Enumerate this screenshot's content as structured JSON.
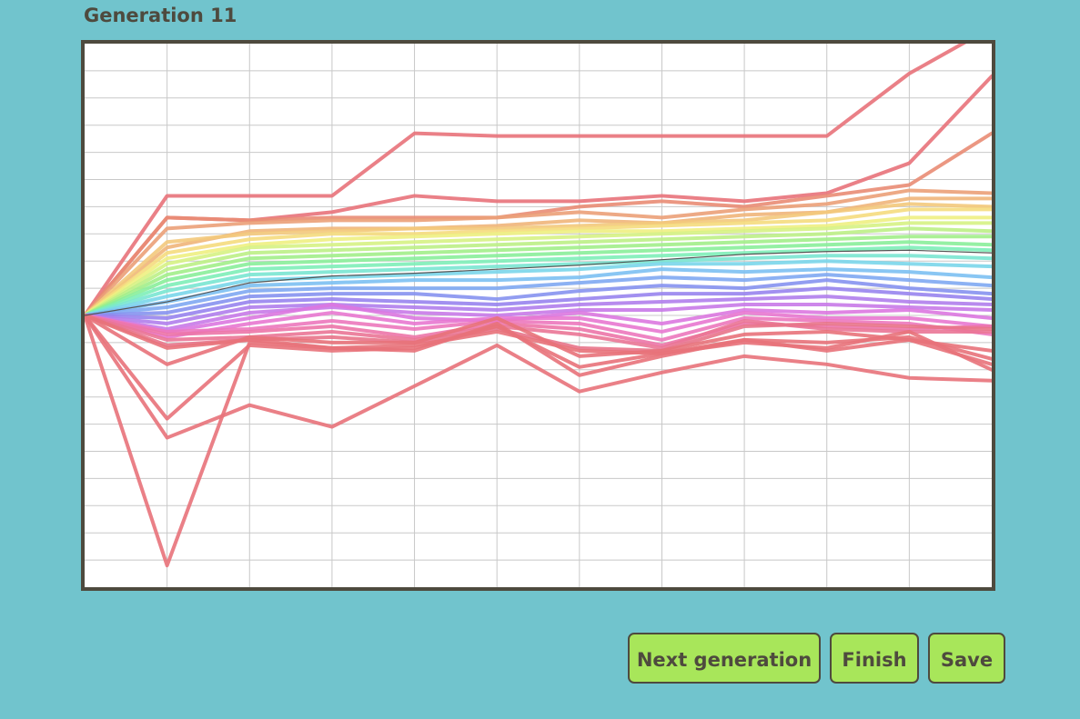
{
  "header": {
    "title": "Generation 11"
  },
  "buttons": {
    "next": "Next generation",
    "finish": "Finish",
    "save": "Save"
  },
  "colors": {
    "background": "#71c4cd",
    "frame": "#4e4a3e",
    "button": "#a8e65a",
    "grid": "#c8c8c8",
    "best_line": "#555555"
  },
  "chart_data": {
    "type": "line",
    "x": [
      0,
      1,
      2,
      3,
      4,
      5,
      6,
      7,
      8,
      9,
      10,
      11
    ],
    "ylim": [
      -10,
      10
    ],
    "grid": true,
    "best_series": [
      0,
      0.5,
      1.2,
      1.45,
      1.55,
      1.7,
      1.85,
      2.05,
      2.25,
      2.35,
      2.4,
      2.3
    ],
    "series": [
      {
        "color": "#e8727a",
        "values": [
          0,
          4.4,
          4.4,
          4.4,
          6.7,
          6.6,
          6.6,
          6.6,
          6.6,
          6.6,
          8.9,
          10.6
        ]
      },
      {
        "color": "#e8727a",
        "values": [
          0,
          3.6,
          3.5,
          3.8,
          4.4,
          4.2,
          4.2,
          4.4,
          4.2,
          4.5,
          5.6,
          8.8
        ]
      },
      {
        "color": "#e98c74",
        "values": [
          0,
          3.6,
          3.5,
          3.6,
          3.6,
          3.6,
          4.0,
          4.2,
          4.0,
          4.4,
          4.8,
          6.7
        ]
      },
      {
        "color": "#eba078",
        "values": [
          0,
          3.2,
          3.4,
          3.5,
          3.5,
          3.6,
          3.8,
          3.6,
          3.9,
          4.1,
          4.6,
          4.5
        ]
      },
      {
        "color": "#f0b57a",
        "values": [
          0,
          2.5,
          3.1,
          3.2,
          3.2,
          3.3,
          3.5,
          3.4,
          3.7,
          3.8,
          4.3,
          4.3
        ]
      },
      {
        "color": "#f3c97c",
        "values": [
          0,
          2.7,
          3.0,
          3.1,
          3.2,
          3.2,
          3.3,
          3.4,
          3.5,
          3.8,
          4.1,
          4.0
        ]
      },
      {
        "color": "#f5dc7e",
        "values": [
          0,
          2.3,
          2.8,
          3.0,
          3.0,
          3.1,
          3.2,
          3.3,
          3.4,
          3.5,
          3.9,
          3.9
        ]
      },
      {
        "color": "#eef082",
        "values": [
          0,
          2.1,
          2.6,
          2.8,
          2.9,
          3.0,
          3.1,
          3.1,
          3.2,
          3.3,
          3.6,
          3.6
        ]
      },
      {
        "color": "#d6f284",
        "values": [
          0,
          1.9,
          2.5,
          2.6,
          2.7,
          2.8,
          2.9,
          3.0,
          3.1,
          3.2,
          3.4,
          3.4
        ]
      },
      {
        "color": "#bdf086",
        "values": [
          0,
          1.7,
          2.3,
          2.4,
          2.5,
          2.6,
          2.7,
          2.8,
          2.9,
          3.0,
          3.2,
          3.1
        ]
      },
      {
        "color": "#a2ee8a",
        "values": [
          0,
          1.5,
          2.1,
          2.2,
          2.3,
          2.4,
          2.5,
          2.6,
          2.7,
          2.8,
          2.9,
          2.9
        ]
      },
      {
        "color": "#8aee9a",
        "values": [
          0,
          1.3,
          1.9,
          2.0,
          2.1,
          2.2,
          2.3,
          2.4,
          2.5,
          2.6,
          2.7,
          2.6
        ]
      },
      {
        "color": "#7eeeb8",
        "values": [
          0,
          1.1,
          1.7,
          1.8,
          1.9,
          2.0,
          2.1,
          2.2,
          2.3,
          2.4,
          2.5,
          2.4
        ]
      },
      {
        "color": "#7ae6d2",
        "values": [
          0,
          0.9,
          1.5,
          1.6,
          1.7,
          1.8,
          1.9,
          2.0,
          2.1,
          2.2,
          2.2,
          2.1
        ]
      },
      {
        "color": "#7ad6ea",
        "values": [
          0,
          0.7,
          1.3,
          1.4,
          1.5,
          1.6,
          1.7,
          1.9,
          1.9,
          2.0,
          1.9,
          1.8
        ]
      },
      {
        "color": "#7cc0f2",
        "values": [
          0,
          0.5,
          1.1,
          1.2,
          1.3,
          1.3,
          1.4,
          1.7,
          1.6,
          1.7,
          1.6,
          1.4
        ]
      },
      {
        "color": "#80a8f2",
        "values": [
          0,
          0.3,
          0.9,
          1.0,
          1.0,
          1.0,
          1.2,
          1.4,
          1.3,
          1.5,
          1.3,
          1.1
        ]
      },
      {
        "color": "#8692f0",
        "values": [
          0,
          0.1,
          0.7,
          0.8,
          0.8,
          0.6,
          0.9,
          1.1,
          1.0,
          1.3,
          1.0,
          0.8
        ]
      },
      {
        "color": "#9884ee",
        "values": [
          0,
          -0.1,
          0.5,
          0.6,
          0.5,
          0.4,
          0.6,
          0.8,
          0.8,
          1.0,
          0.8,
          0.6
        ]
      },
      {
        "color": "#b07eec",
        "values": [
          0,
          -0.3,
          0.3,
          0.4,
          0.3,
          0.2,
          0.4,
          0.5,
          0.6,
          0.7,
          0.5,
          0.4
        ]
      },
      {
        "color": "#c87ae8",
        "values": [
          0,
          -0.5,
          0.1,
          0.3,
          0.1,
          0.0,
          0.2,
          0.2,
          0.4,
          0.4,
          0.3,
          0.2
        ]
      },
      {
        "color": "#dc78e0",
        "values": [
          0,
          -0.6,
          -0.1,
          0.4,
          -0.1,
          -0.2,
          0.1,
          -0.3,
          0.2,
          0.1,
          0.2,
          -0.1
        ]
      },
      {
        "color": "#e878d0",
        "values": [
          0,
          -0.8,
          -0.3,
          0.1,
          -0.3,
          -0.1,
          -0.1,
          -0.6,
          0.1,
          -0.1,
          -0.1,
          -0.4
        ]
      },
      {
        "color": "#ec78bc",
        "values": [
          0,
          -0.6,
          -0.5,
          -0.2,
          -0.5,
          -0.2,
          -0.3,
          -0.9,
          -0.1,
          -0.2,
          -0.3,
          -0.7
        ]
      },
      {
        "color": "#ec76a8",
        "values": [
          0,
          -0.7,
          -0.6,
          -0.4,
          -0.8,
          -0.3,
          -0.5,
          -1.1,
          -0.3,
          -0.4,
          -0.5,
          -0.4
        ]
      },
      {
        "color": "#ea7696",
        "values": [
          0,
          -0.9,
          -0.8,
          -0.6,
          -0.9,
          -0.4,
          -0.7,
          -1.2,
          -0.2,
          -0.5,
          -0.6,
          -0.6
        ]
      },
      {
        "color": "#e8748a",
        "values": [
          0,
          -1.1,
          -0.9,
          -0.8,
          -1.0,
          -0.5,
          -1.2,
          -1.3,
          -0.4,
          -0.3,
          -0.4,
          -0.5
        ]
      },
      {
        "color": "#e8727a",
        "values": [
          0,
          -1.2,
          -0.9,
          -1.2,
          -1.1,
          -0.6,
          -1.3,
          -1.4,
          -0.9,
          -1.0,
          -0.8,
          -1.6
        ]
      },
      {
        "color": "#e8727a",
        "values": [
          0,
          -1.8,
          -0.8,
          -1.0,
          -1.0,
          -0.1,
          -1.5,
          -1.3,
          -0.7,
          -0.6,
          -0.9,
          -1.8
        ]
      },
      {
        "color": "#e8727a",
        "values": [
          0,
          -4.5,
          -3.3,
          -4.1,
          -2.6,
          -1.1,
          -2.8,
          -2.1,
          -1.5,
          -1.8,
          -2.3,
          -2.4
        ]
      },
      {
        "color": "#e8727a",
        "values": [
          0,
          -9.2,
          -1.0,
          -1.2,
          -1.3,
          -0.3,
          -2.2,
          -1.5,
          -0.9,
          -1.3,
          -0.9,
          -1.3
        ]
      },
      {
        "color": "#e8727a",
        "values": [
          0,
          -3.8,
          -1.1,
          -1.3,
          -1.2,
          -0.4,
          -1.9,
          -1.4,
          -1.0,
          -1.2,
          -0.6,
          -2.0
        ]
      }
    ]
  }
}
